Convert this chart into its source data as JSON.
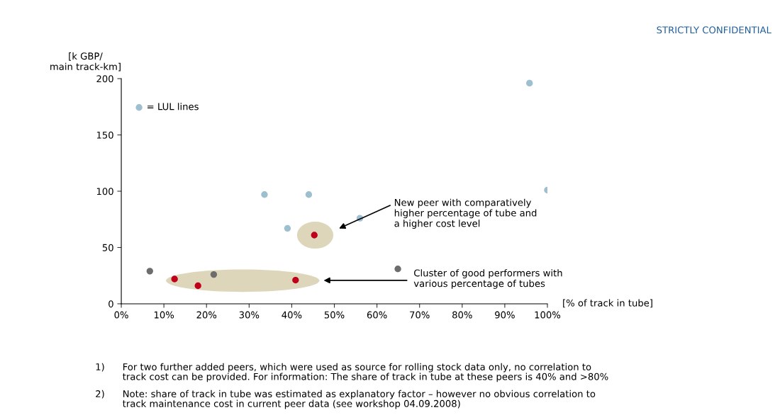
{
  "chart_data": {
    "type": "scatter",
    "xlabel": "[% of track in tube]",
    "ylabel": "[k GBP/\nmain track-km]",
    "xlim": [
      0,
      100
    ],
    "ylim": [
      0,
      200
    ],
    "xticks": [
      {
        "value": 0,
        "label": "0%"
      },
      {
        "value": 10,
        "label": "10%"
      },
      {
        "value": 20,
        "label": "20%"
      },
      {
        "value": 30,
        "label": "30%"
      },
      {
        "value": 40,
        "label": "40%"
      },
      {
        "value": 50,
        "label": "50%"
      },
      {
        "value": 60,
        "label": "60%"
      },
      {
        "value": 70,
        "label": "70%"
      },
      {
        "value": 80,
        "label": "80%"
      },
      {
        "value": 90,
        "label": "90%"
      },
      {
        "value": 100,
        "label": "100%"
      }
    ],
    "yticks": [
      0,
      50,
      100,
      150,
      200
    ],
    "grid": false,
    "legend": "top left",
    "series": [
      {
        "name": "= LUL lines",
        "color": "#9dbfcf",
        "x": [
          33.6,
          44.0,
          39.0,
          56.0,
          95.8,
          100.0
        ],
        "values": [
          97,
          97,
          67,
          76,
          196,
          101
        ]
      },
      {
        "color": "#6d6d6d",
        "x": [
          6.7,
          21.7,
          64.9
        ],
        "values": [
          29,
          26,
          31
        ]
      },
      {
        "color": "#c0001a",
        "x": [
          12.5,
          18.0,
          40.9,
          45.3
        ],
        "values": [
          22,
          16,
          21,
          61
        ]
      }
    ],
    "annotations": [
      "STRICTLY CONFIDENTIAL",
      "New peer with comparatively\nhigher percentage of tube and\na higher cost level",
      "Cluster of good performers with\nvarious percentage of tubes",
      "1) For two further added peers, which were used as source for rolling stock data only, no correlation to\ntrack cost can be provided. For information: The share of track in tube at these peers is 40% and >80%",
      "2) Note: share of track in tube was estimated as explanatory factor – however no obvious correlation to\ntrack maintenance cost in current peer data (see workshop 04.09.2008)"
    ]
  }
}
